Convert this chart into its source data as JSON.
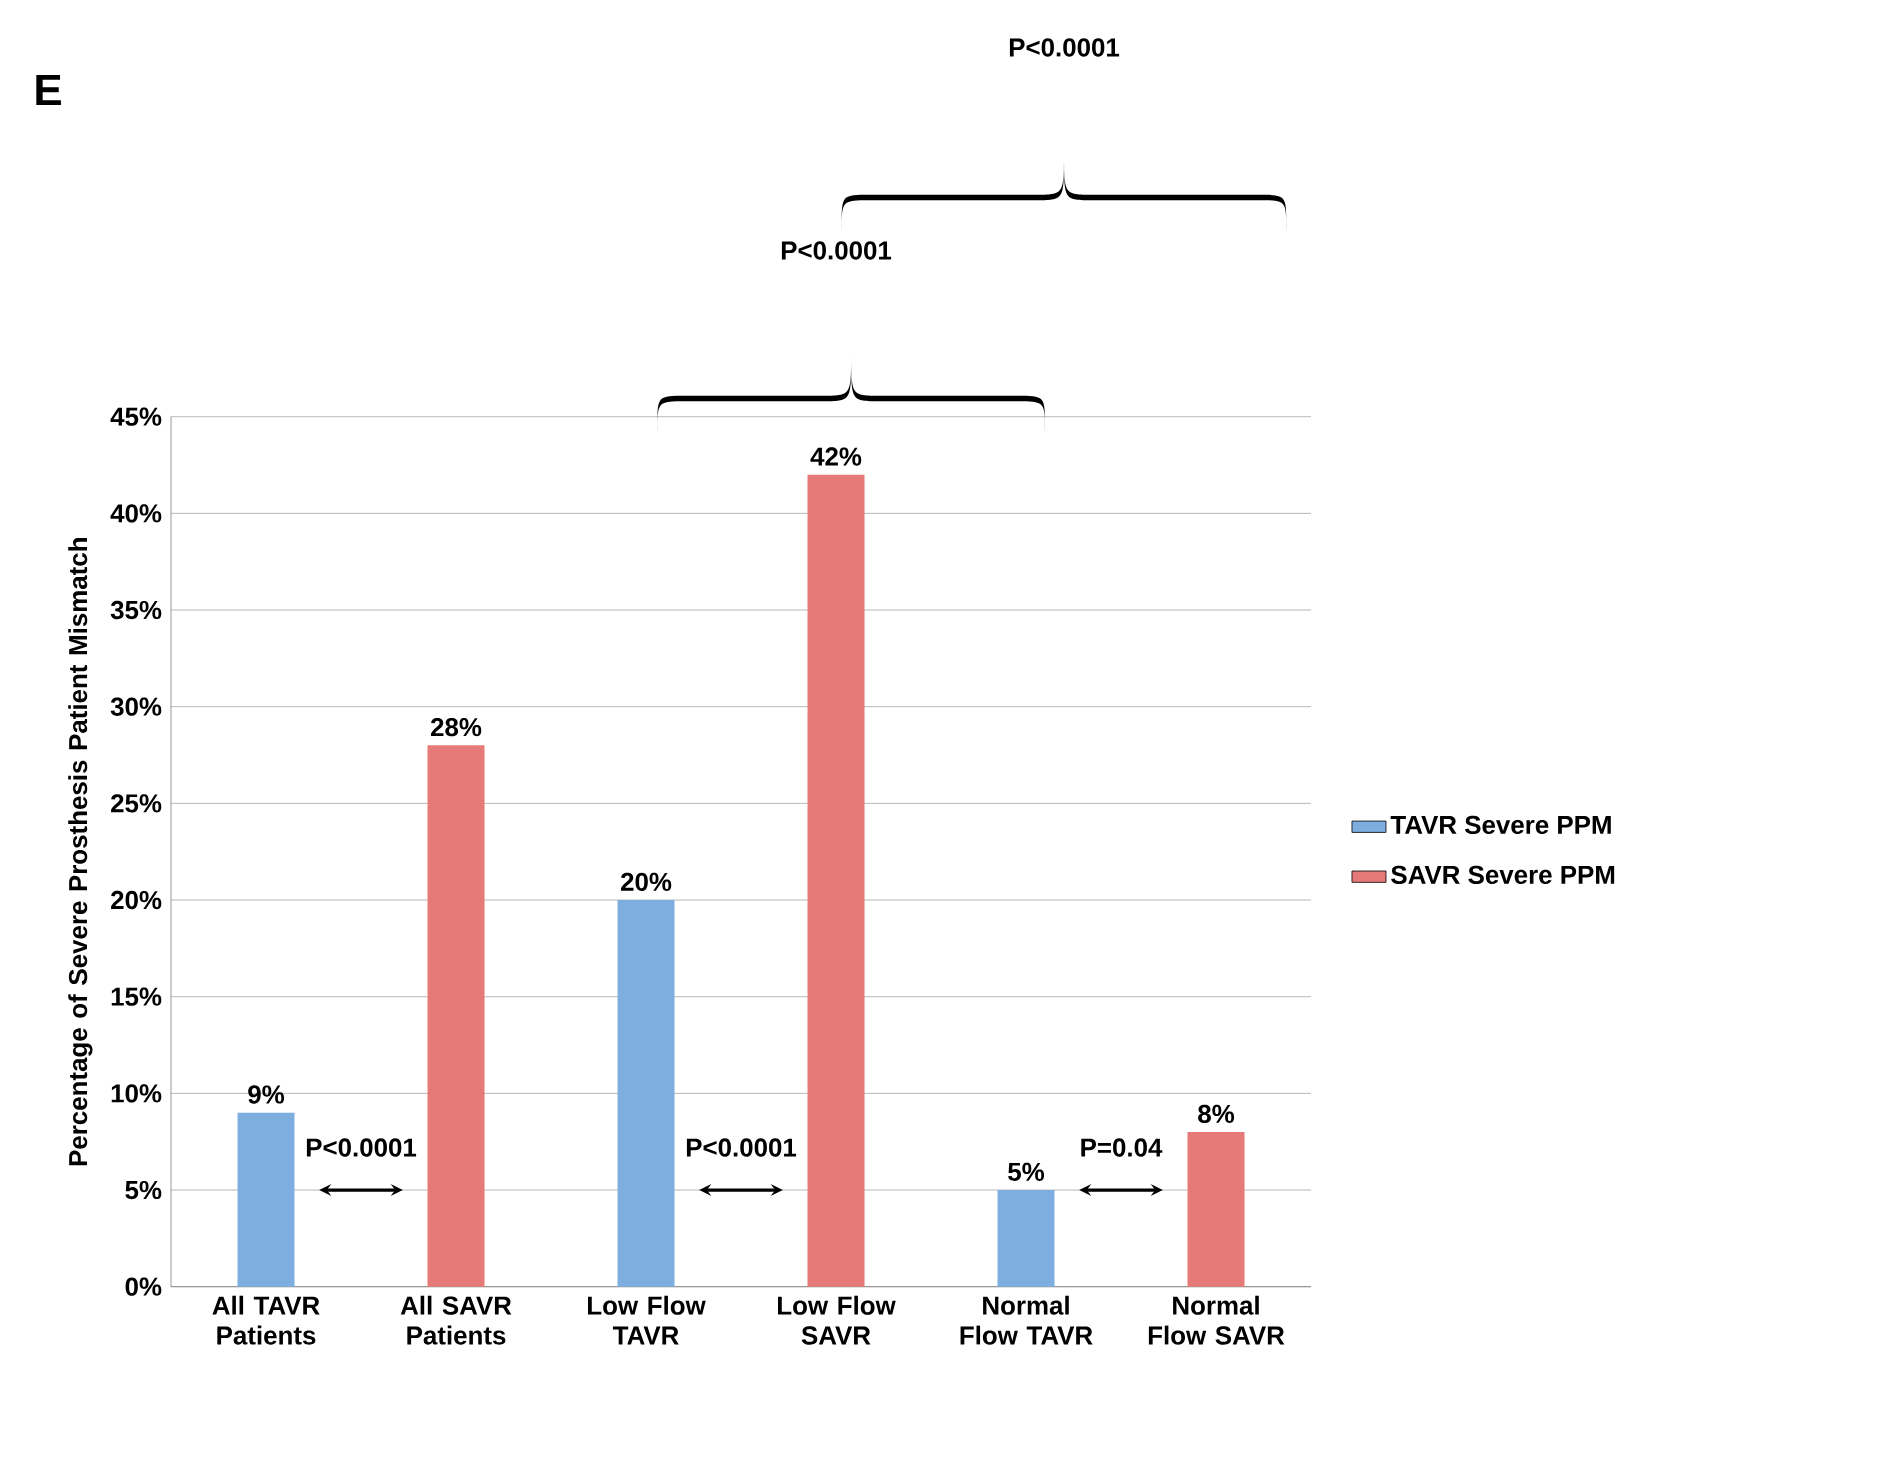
{
  "chart_data": {
    "type": "bar",
    "ylabel": "Percentage of Severe Prosthesis Patient Mismatch",
    "categories": [
      "All TAVR Patients",
      "All SAVR Patients",
      "Low Flow TAVR",
      "Low Flow SAVR",
      "Normal Flow TAVR",
      "Normal Flow SAVR"
    ],
    "series": [
      {
        "name": "TAVR Severe PPM",
        "color": "#7eaee0",
        "values": [
          9,
          null,
          20,
          null,
          5,
          null
        ],
        "value_labels": [
          "9%",
          null,
          "20%",
          null,
          "5%",
          null
        ]
      },
      {
        "name": "SAVR Severe PPM",
        "color": "#e57a78",
        "values": [
          null,
          28,
          null,
          42,
          null,
          8
        ],
        "value_labels": [
          null,
          "28%",
          null,
          "42%",
          null,
          "8%"
        ]
      }
    ],
    "ylim": [
      0,
      45
    ],
    "yticks": [
      {
        "value": 0,
        "label": "0%"
      },
      {
        "value": 5,
        "label": "5%"
      },
      {
        "value": 10,
        "label": "10%"
      },
      {
        "value": 15,
        "label": "15%"
      },
      {
        "value": 20,
        "label": "20%"
      },
      {
        "value": 25,
        "label": "25%"
      },
      {
        "value": 30,
        "label": "30%"
      },
      {
        "value": 35,
        "label": "35%"
      },
      {
        "value": 40,
        "label": "40%"
      },
      {
        "value": 45,
        "label": "45%"
      }
    ],
    "grid": "y",
    "legend": "right",
    "annotations": [
      "E",
      "P<0.0001",
      "P<0.0001",
      "P<0.0001",
      "P<0.0001",
      "P=0.04"
    ]
  }
}
